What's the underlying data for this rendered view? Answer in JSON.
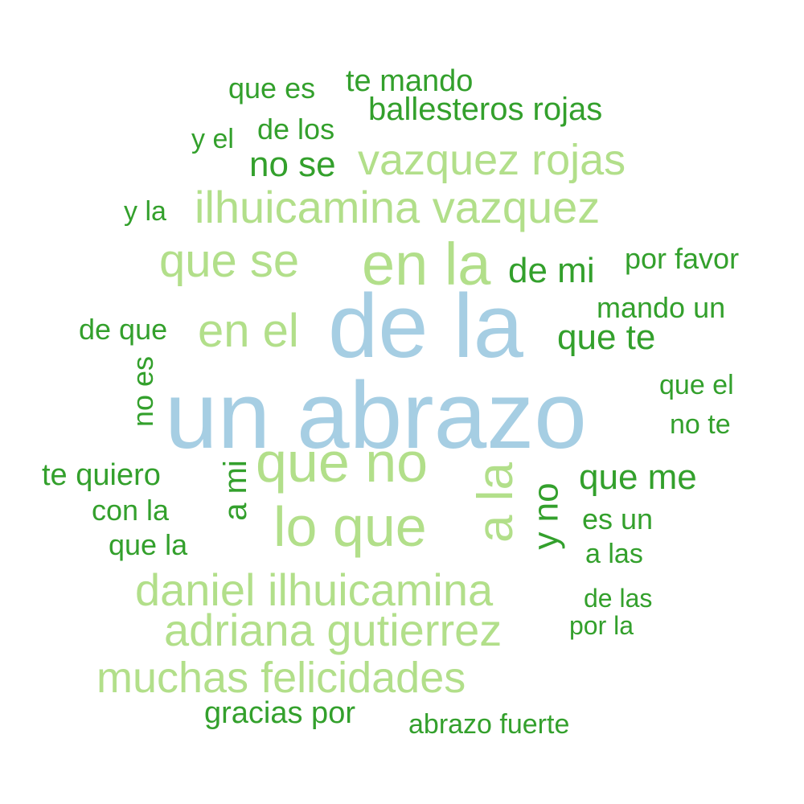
{
  "palette": {
    "largest": "#a6cee3",
    "large": "#b2df8a",
    "small": "#33a02c"
  },
  "words": {
    "un_abrazo": "un abrazo",
    "de_la": "de la",
    "en_la": "en la",
    "que_no": "que no",
    "lo_que": "lo que",
    "que_se": "que se",
    "en_el": "en el",
    "a_la": "a la",
    "ilhuicamina_vazquez": "ilhuicamina vazquez",
    "vazquez_rojas": "vazquez rojas",
    "daniel_ilhuicamina": "daniel ilhuicamina",
    "adriana_gutierrez": "adriana gutierrez",
    "muchas_felicidades": "muchas felicidades",
    "de_mi": "de mi",
    "que_te": "que te",
    "que_me": "que me",
    "y_no": "y no",
    "a_mi": "a mi",
    "no_se": "no se",
    "ballesteros_rojas": "ballesteros rojas",
    "te_mando": "te mando",
    "que_es": "que es",
    "de_los": "de los",
    "y_el": "y el",
    "y_la": "y la",
    "por_favor": "por favor",
    "mando_un": "mando un",
    "de_que": "de que",
    "no_es": "no es",
    "que_el": "que el",
    "no_te": "no te",
    "te_quiero": "te quiero",
    "con_la": "con la",
    "que_la": "que la",
    "es_un": "es un",
    "a_las": "a las",
    "de_las": "de las",
    "por_la": "por la",
    "gracias_por": "gracias por",
    "abrazo_fuerte": "abrazo fuerte"
  }
}
